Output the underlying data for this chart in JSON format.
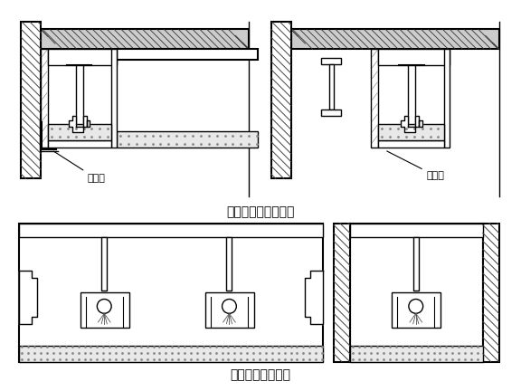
{
  "title1": "吊顶与窗帘盒的结合",
  "title2": "吊顶与灯盘的结合",
  "label1": "铝角线",
  "label2": "木线条",
  "bg_color": "#ffffff",
  "line_color": "#000000"
}
